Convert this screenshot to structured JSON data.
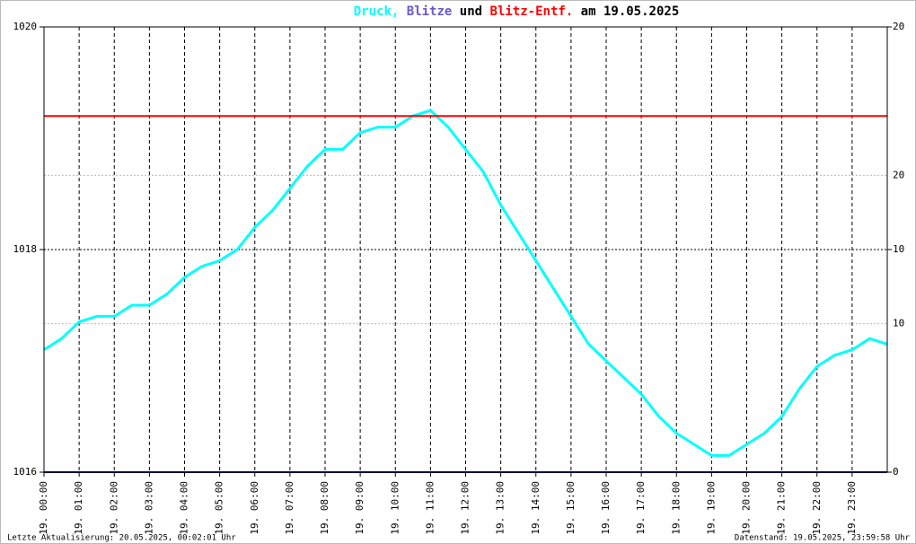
{
  "chart_data": {
    "type": "line",
    "title_parts": [
      {
        "text": "Druck,",
        "color": "#00ffff"
      },
      {
        "text": "Blitze",
        "color": "#6a5acd"
      },
      {
        "text": "und",
        "color": "#000000"
      },
      {
        "text": "Blitz-Entf.",
        "color": "#ff0000"
      },
      {
        "text": "am 19.05.2025",
        "color": "#000000"
      }
    ],
    "footer_left": "Letzte Aktualisierung: 20.05.2025, 00:02:01 Uhr",
    "footer_right": "Datenstand: 19.05.2025, 23:59:58 Uhr",
    "xlim": [
      0,
      24
    ],
    "xticks": [
      {
        "value": 0,
        "label": "19. 00:00"
      },
      {
        "value": 1,
        "label": "19. 01:00"
      },
      {
        "value": 2,
        "label": "19. 02:00"
      },
      {
        "value": 3,
        "label": "19. 03:00"
      },
      {
        "value": 4,
        "label": "19. 04:00"
      },
      {
        "value": 5,
        "label": "19. 05:00"
      },
      {
        "value": 6,
        "label": "19. 06:00"
      },
      {
        "value": 7,
        "label": "19. 07:00"
      },
      {
        "value": 8,
        "label": "19. 08:00"
      },
      {
        "value": 9,
        "label": "19. 09:00"
      },
      {
        "value": 10,
        "label": "19. 10:00"
      },
      {
        "value": 11,
        "label": "19. 11:00"
      },
      {
        "value": 12,
        "label": "19. 12:00"
      },
      {
        "value": 13,
        "label": "19. 13:00"
      },
      {
        "value": 14,
        "label": "19. 14:00"
      },
      {
        "value": 15,
        "label": "19. 15:00"
      },
      {
        "value": 16,
        "label": "19. 16:00"
      },
      {
        "value": 17,
        "label": "19. 17:00"
      },
      {
        "value": 18,
        "label": "19. 18:00"
      },
      {
        "value": 19,
        "label": "19. 19:00"
      },
      {
        "value": 20,
        "label": "19. 20:00"
      },
      {
        "value": 21,
        "label": "19. 21:00"
      },
      {
        "value": 22,
        "label": "19. 22:00"
      },
      {
        "value": 23,
        "label": "19. 23:00"
      }
    ],
    "ylim": [
      1016,
      1020
    ],
    "yticks": [
      1016,
      1018,
      1020
    ],
    "y2lim": [
      0,
      20
    ],
    "y2ticks": [
      0,
      10,
      20
    ],
    "y3lim": [
      0,
      30
    ],
    "y3ticks": [
      10,
      20
    ],
    "y3color": "#ff0000",
    "grid": true,
    "series": [
      {
        "color": "#00ffff",
        "axis": "y",
        "x": [
          0,
          0.5,
          1,
          1.5,
          2,
          2.5,
          3,
          3.5,
          4,
          4.5,
          5,
          5.5,
          6,
          6.5,
          7,
          7.5,
          8,
          8.5,
          9,
          9.5,
          10,
          10.5,
          11,
          11.5,
          12,
          12.5,
          13,
          13.5,
          14,
          14.5,
          15,
          15.5,
          16,
          16.5,
          17,
          17.5,
          18,
          18.5,
          19,
          19.5,
          20,
          20.5,
          21,
          21.5,
          22,
          22.5,
          23,
          23.5,
          24
        ],
        "values": [
          1017.1,
          1017.2,
          1017.35,
          1017.4,
          1017.4,
          1017.5,
          1017.5,
          1017.6,
          1017.75,
          1017.85,
          1017.9,
          1018.0,
          1018.2,
          1018.35,
          1018.55,
          1018.75,
          1018.9,
          1018.9,
          1019.05,
          1019.1,
          1019.1,
          1019.2,
          1019.25,
          1019.1,
          1018.9,
          1018.7,
          1018.4,
          1018.15,
          1017.9,
          1017.65,
          1017.4,
          1017.15,
          1017.0,
          1016.85,
          1016.7,
          1016.5,
          1016.35,
          1016.25,
          1016.15,
          1016.15,
          1016.25,
          1016.35,
          1016.5,
          1016.75,
          1016.95,
          1017.05,
          1017.1,
          1017.2,
          1017.15
        ]
      },
      {
        "color": "#000080",
        "axis": "y2",
        "x": [
          0,
          24
        ],
        "values": [
          0,
          0
        ]
      },
      {
        "color": "#ff0000",
        "axis": "y3",
        "x": [
          0,
          24
        ],
        "values": [
          24,
          24
        ]
      }
    ]
  }
}
